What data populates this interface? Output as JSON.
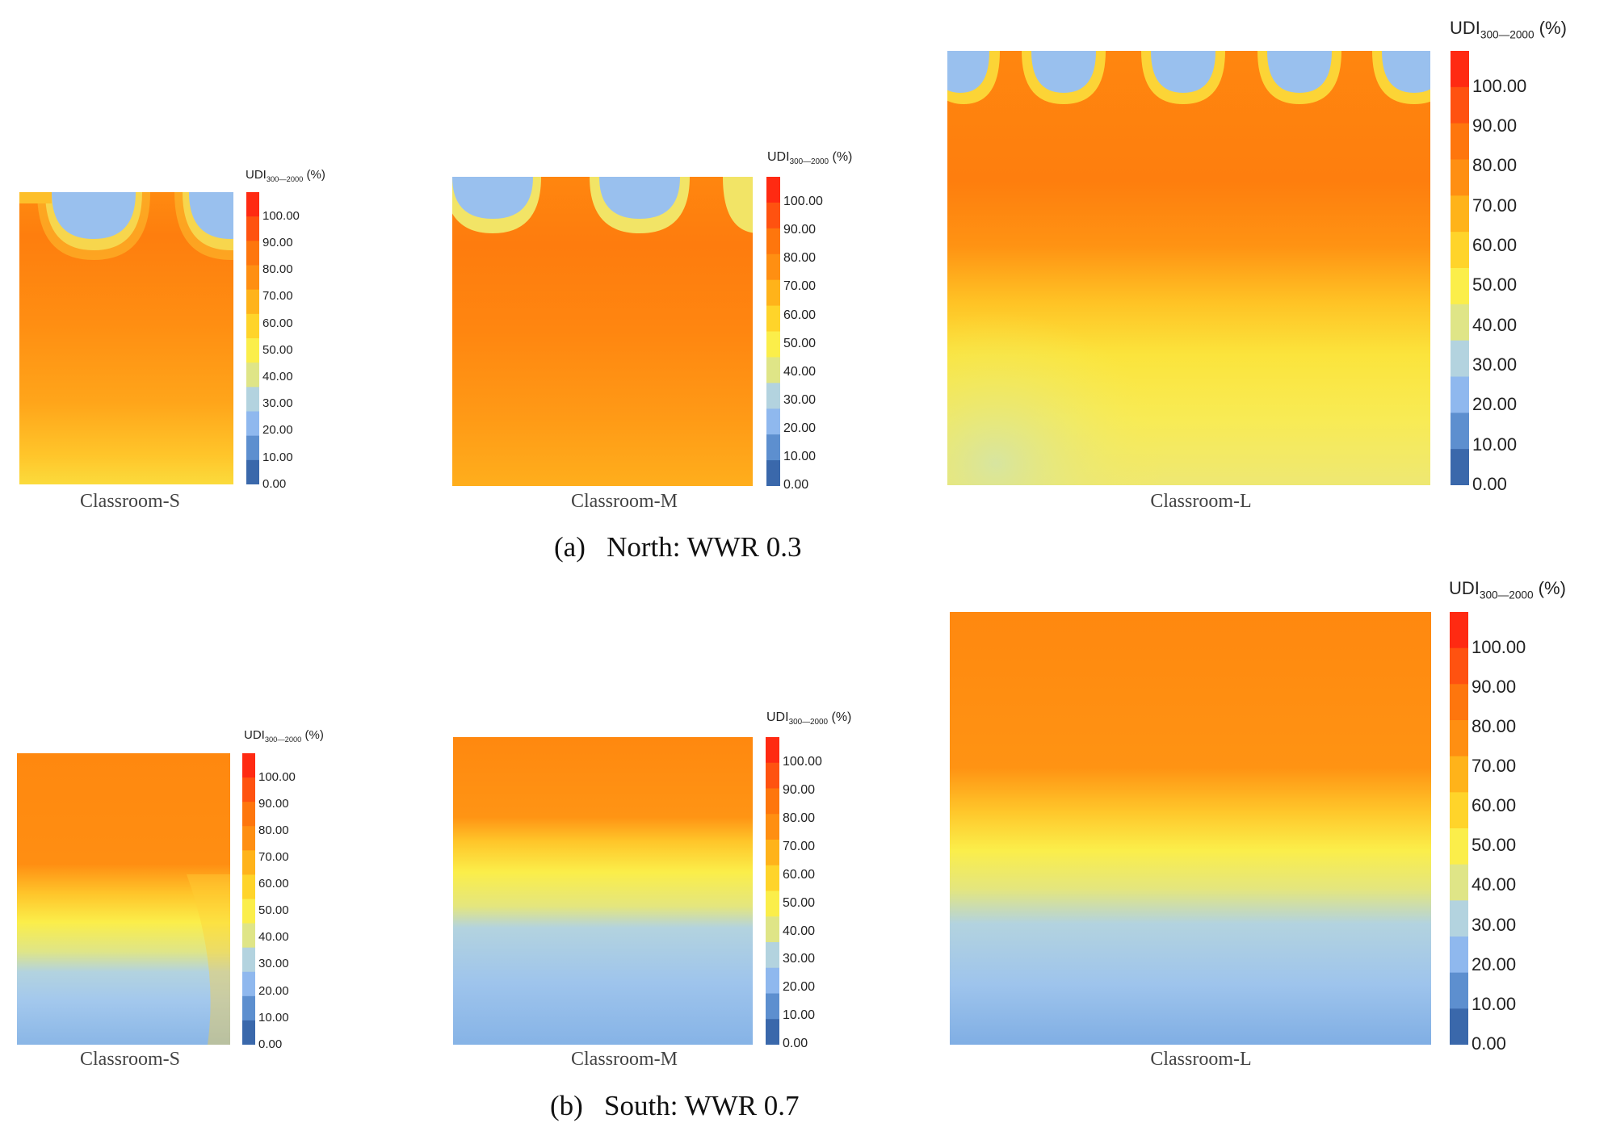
{
  "colorbar": {
    "title_main": "UDI",
    "title_sub": "300—2000",
    "title_unit": " (%)",
    "ticks": [
      "100.00",
      "90.00",
      "80.00",
      "70.00",
      "60.00",
      "50.00",
      "40.00",
      "30.00",
      "20.00",
      "10.00",
      "0.00"
    ],
    "colors": [
      "#ff2a12",
      "#ff5210",
      "#fe760d",
      "#ff8f12",
      "#ffb31a",
      "#ffd42a",
      "#fbee4a",
      "#dfe587",
      "#b3d3df",
      "#8fb8ee",
      "#5d8fcf",
      "#3a68ab"
    ]
  },
  "rows": [
    {
      "caption": "(a)  North: WWR 0.3"
    },
    {
      "caption": "(b)  South: WWR 0.7"
    }
  ],
  "chart_data": [
    {
      "type": "heatmap",
      "title": "Classroom-S",
      "orientation": "North",
      "wwr": 0.3,
      "colorbar_range": [
        0,
        100
      ],
      "bands": [
        {
          "position": "window edge",
          "udi": 20
        },
        {
          "position": "front",
          "udi": 80
        },
        {
          "position": "middle",
          "udi": 72
        },
        {
          "position": "back",
          "udi": 58
        }
      ]
    },
    {
      "type": "heatmap",
      "title": "Classroom-M",
      "orientation": "North",
      "wwr": 0.3,
      "colorbar_range": [
        0,
        100
      ],
      "bands": [
        {
          "position": "window edge",
          "udi": 20
        },
        {
          "position": "front",
          "udi": 80
        },
        {
          "position": "middle",
          "udi": 75
        },
        {
          "position": "back",
          "udi": 65
        }
      ]
    },
    {
      "type": "heatmap",
      "title": "Classroom-L",
      "orientation": "North",
      "wwr": 0.3,
      "colorbar_range": [
        0,
        100
      ],
      "bands": [
        {
          "position": "window edge",
          "udi": 20
        },
        {
          "position": "front",
          "udi": 80
        },
        {
          "position": "middle",
          "udi": 60
        },
        {
          "position": "back",
          "udi": 45
        }
      ]
    },
    {
      "type": "heatmap",
      "title": "Classroom-S",
      "orientation": "South",
      "wwr": 0.7,
      "colorbar_range": [
        0,
        100
      ],
      "bands": [
        {
          "position": "window edge",
          "udi": 75
        },
        {
          "position": "middle",
          "udi": 50
        },
        {
          "position": "back",
          "udi": 15
        }
      ]
    },
    {
      "type": "heatmap",
      "title": "Classroom-M",
      "orientation": "South",
      "wwr": 0.7,
      "colorbar_range": [
        0,
        100
      ],
      "bands": [
        {
          "position": "window edge",
          "udi": 75
        },
        {
          "position": "middle",
          "udi": 50
        },
        {
          "position": "back",
          "udi": 15
        }
      ]
    },
    {
      "type": "heatmap",
      "title": "Classroom-L",
      "orientation": "South",
      "wwr": 0.7,
      "colorbar_range": [
        0,
        100
      ],
      "bands": [
        {
          "position": "window edge",
          "udi": 75
        },
        {
          "position": "middle",
          "udi": 50
        },
        {
          "position": "back",
          "udi": 15
        }
      ]
    }
  ]
}
